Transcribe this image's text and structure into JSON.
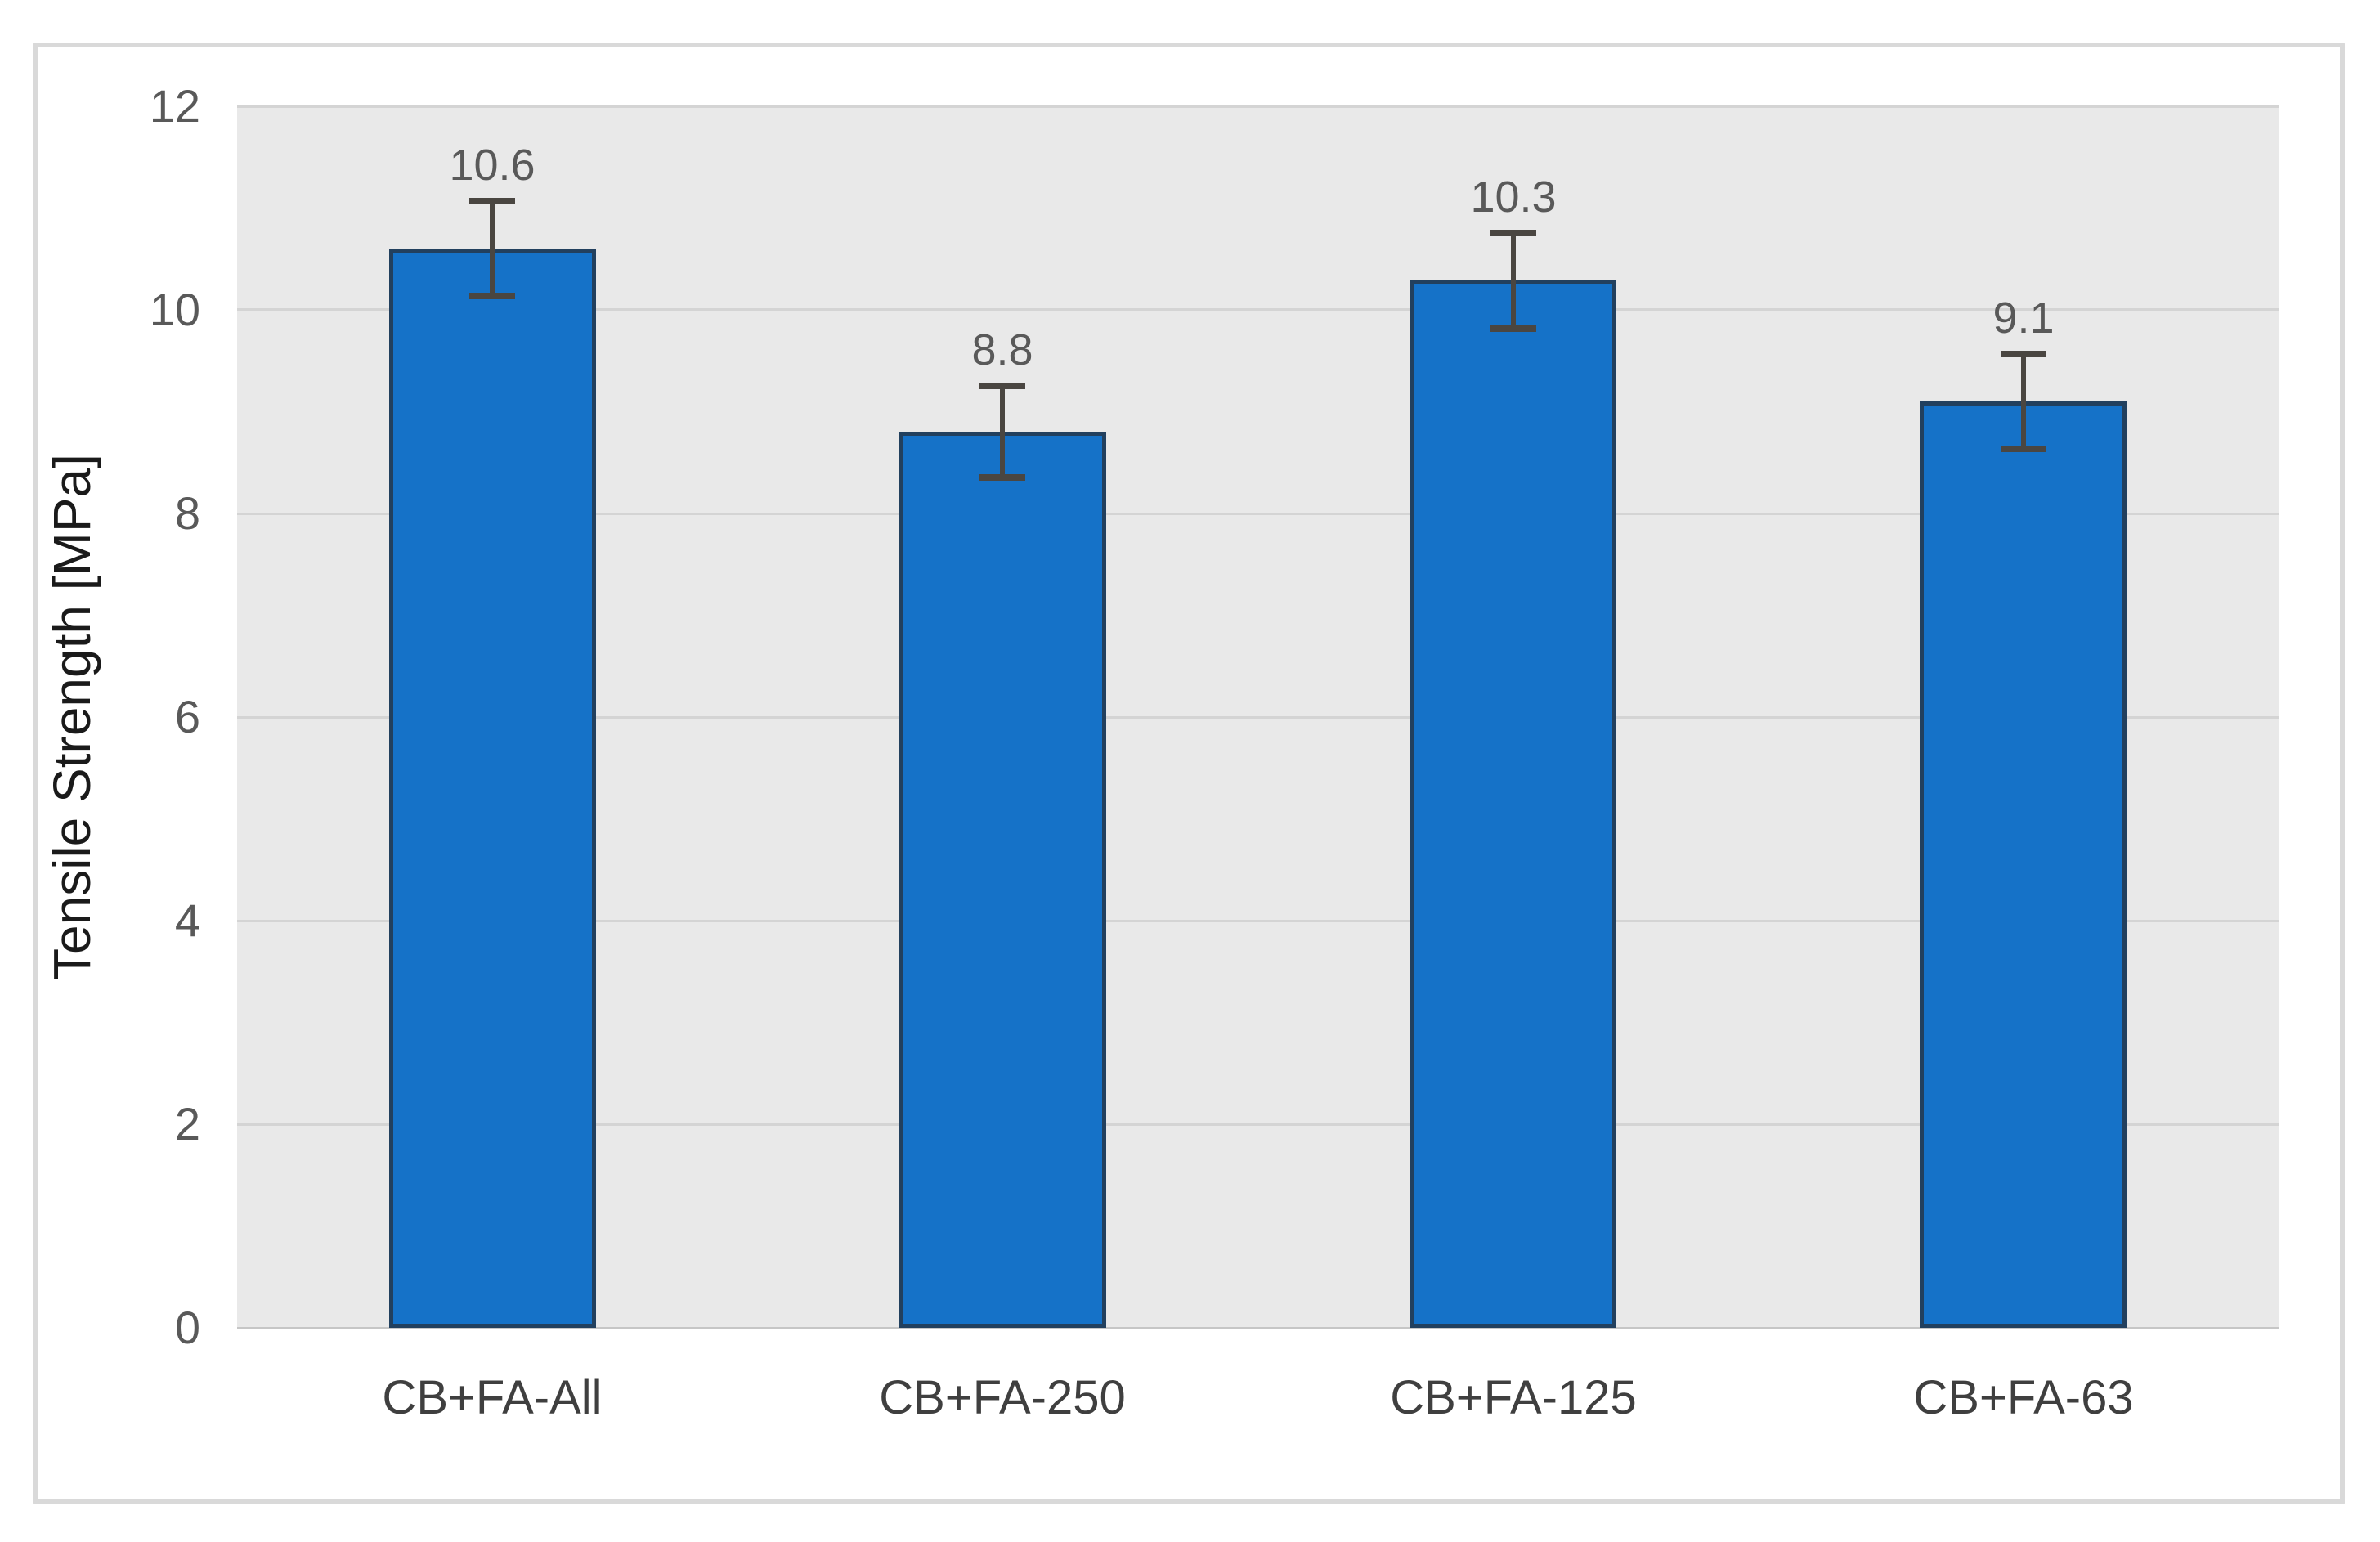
{
  "chart_data": {
    "type": "bar",
    "title": "",
    "categories": [
      "CB+FA-All",
      "CB+FA-250",
      "CB+FA-125",
      "CB+FA-63"
    ],
    "values": [
      10.6,
      8.8,
      10.3,
      9.1
    ],
    "data_labels": [
      "10.6",
      "8.8",
      "10.3",
      "9.1"
    ],
    "error_plus": [
      0.45,
      0.44,
      0.44,
      0.45
    ],
    "error_minus": [
      0.45,
      0.43,
      0.47,
      0.45
    ],
    "xlabel": "",
    "ylabel": "Tensile Strength [MPa]",
    "ylim": [
      0,
      12
    ],
    "yticks": [
      0,
      2,
      4,
      6,
      8,
      10,
      12
    ],
    "ytick_labels": [
      "0",
      "2",
      "4",
      "6",
      "8",
      "10",
      "12"
    ],
    "grid": true,
    "legend": false,
    "plot_background": "gray-panel",
    "bar_series_name": ""
  },
  "colors": {
    "bar_fill": "#1572C8",
    "bar_border": "#22405E",
    "error_bar": "#4A4641",
    "plot_bg": "#E9E9E9",
    "gridline": "#D4D4D4",
    "zero_axis_line": "#C6C6C6",
    "tick_label": "#595959",
    "category_label": "#3F3F3F",
    "data_label": "#595959",
    "axis_title": "#1A1A1A",
    "chart_border": "#D9D9D9",
    "chart_bg": "#FFFFFF"
  }
}
